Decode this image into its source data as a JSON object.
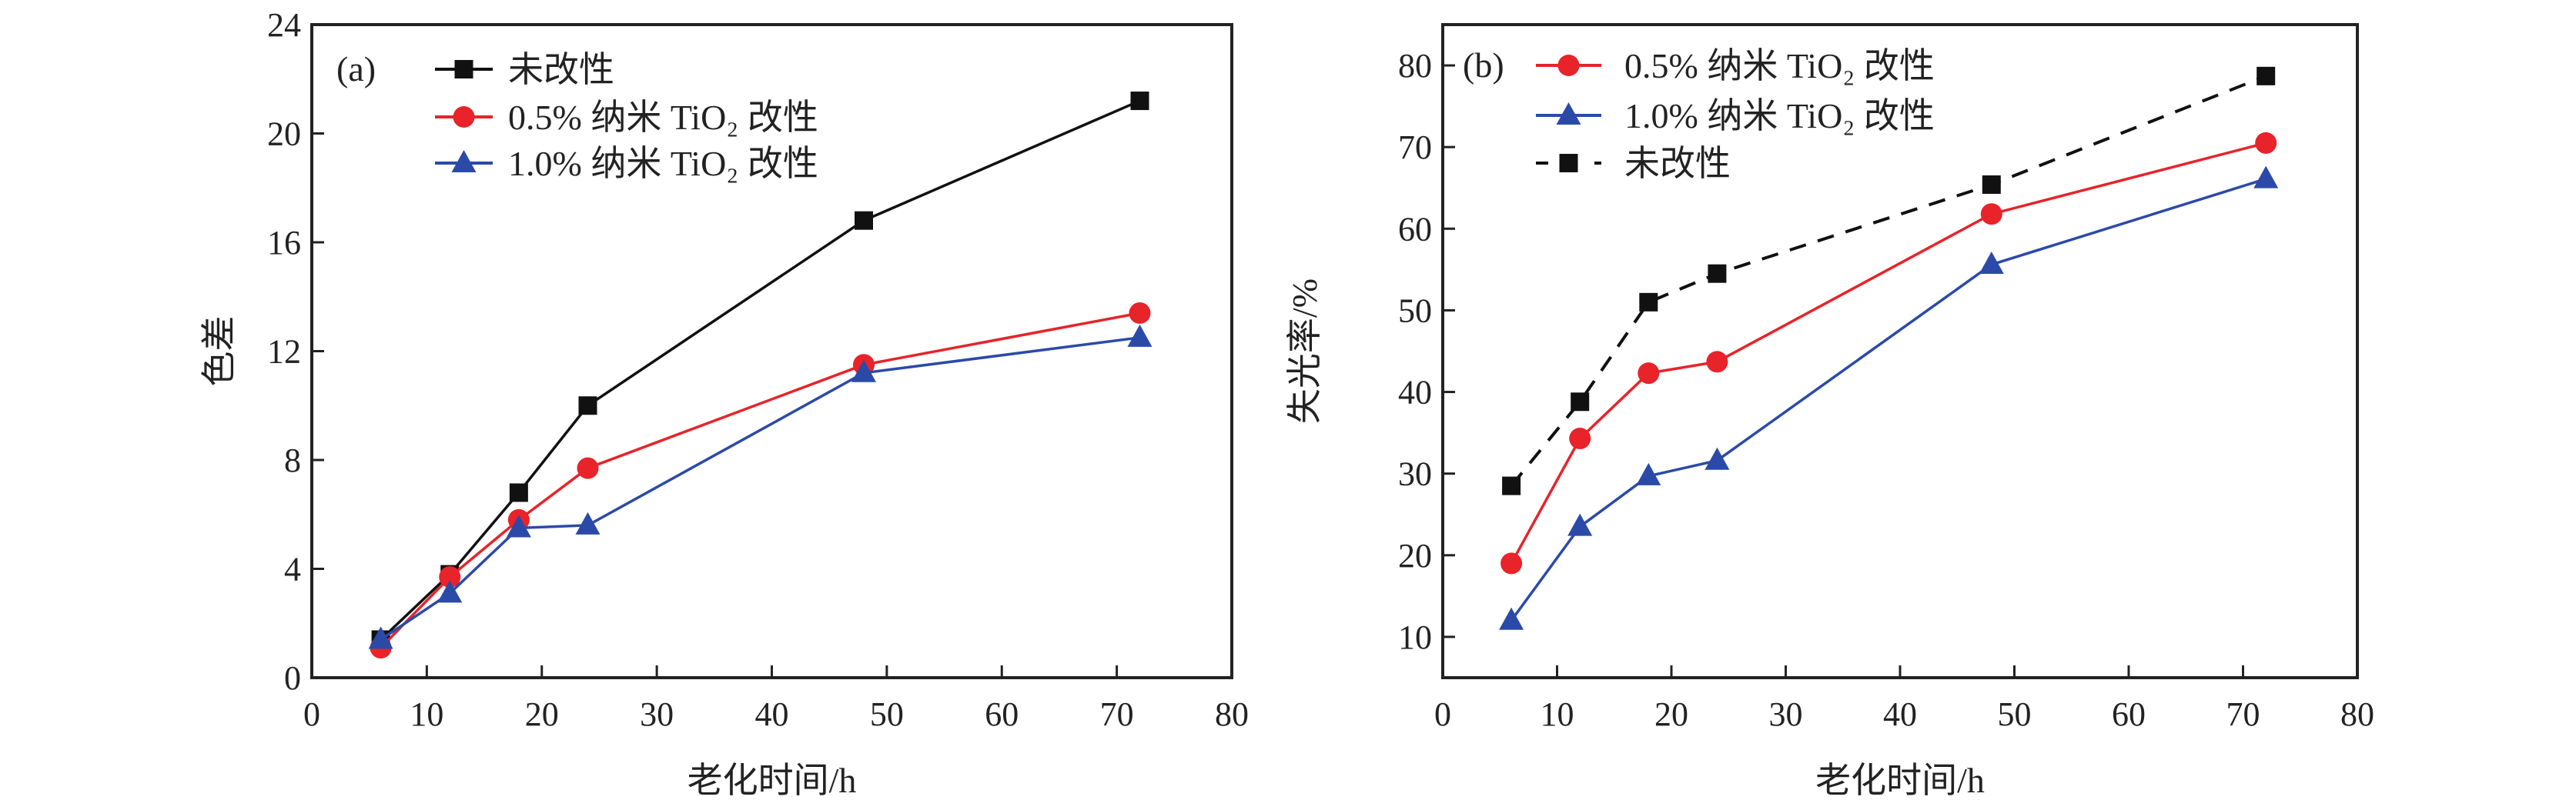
{
  "chart_data": [
    {
      "type": "line",
      "panel_label": "(a)",
      "xlabel": "老化时间/h",
      "ylabel": "色差",
      "xlim": [
        0,
        80
      ],
      "ylim": [
        0,
        24
      ],
      "xticks": [
        0,
        10,
        20,
        30,
        40,
        50,
        60,
        70,
        80
      ],
      "yticks": [
        0,
        4,
        8,
        12,
        16,
        20,
        24
      ],
      "legend_placement": "top-left",
      "grid": false,
      "x": [
        6,
        12,
        18,
        24,
        48,
        72
      ],
      "series": [
        {
          "name": "未改性",
          "values": [
            1.4,
            3.8,
            6.8,
            10.0,
            16.8,
            21.2
          ],
          "color": "#111111",
          "marker": "square",
          "dash": false
        },
        {
          "name": "0.5% 纳米 TiO₂ 改性",
          "values": [
            1.1,
            3.7,
            5.8,
            7.7,
            11.5,
            13.4
          ],
          "color": "#e8232a",
          "marker": "circle",
          "dash": false
        },
        {
          "name": "1.0% 纳米 TiO₂ 改性",
          "values": [
            1.4,
            3.1,
            5.5,
            5.6,
            11.2,
            12.5
          ],
          "color": "#2b4aa8",
          "marker": "triangle",
          "dash": false
        }
      ]
    },
    {
      "type": "line",
      "panel_label": "(b)",
      "xlabel": "老化时间/h",
      "ylabel": "失光率/%",
      "xlim": [
        0,
        80
      ],
      "ylim": [
        5,
        85
      ],
      "xticks": [
        0,
        10,
        20,
        30,
        40,
        50,
        60,
        70,
        80
      ],
      "yticks": [
        10,
        20,
        30,
        40,
        50,
        60,
        70,
        80
      ],
      "legend_placement": "top-left",
      "grid": false,
      "x": [
        6,
        12,
        18,
        24,
        48,
        72
      ],
      "series": [
        {
          "name": "0.5% 纳米 TiO₂ 改性",
          "values": [
            19.0,
            34.3,
            42.3,
            43.7,
            61.8,
            70.5
          ],
          "color": "#e8232a",
          "marker": "circle",
          "dash": false
        },
        {
          "name": "1.0% 纳米 TiO₂ 改性",
          "values": [
            12.0,
            23.5,
            29.7,
            31.6,
            55.6,
            66.1
          ],
          "color": "#2b4aa8",
          "marker": "triangle",
          "dash": false
        },
        {
          "name": "未改性",
          "values": [
            28.5,
            38.8,
            51.0,
            54.5,
            65.4,
            78.7
          ],
          "color": "#111111",
          "marker": "square",
          "dash": true
        }
      ]
    }
  ]
}
